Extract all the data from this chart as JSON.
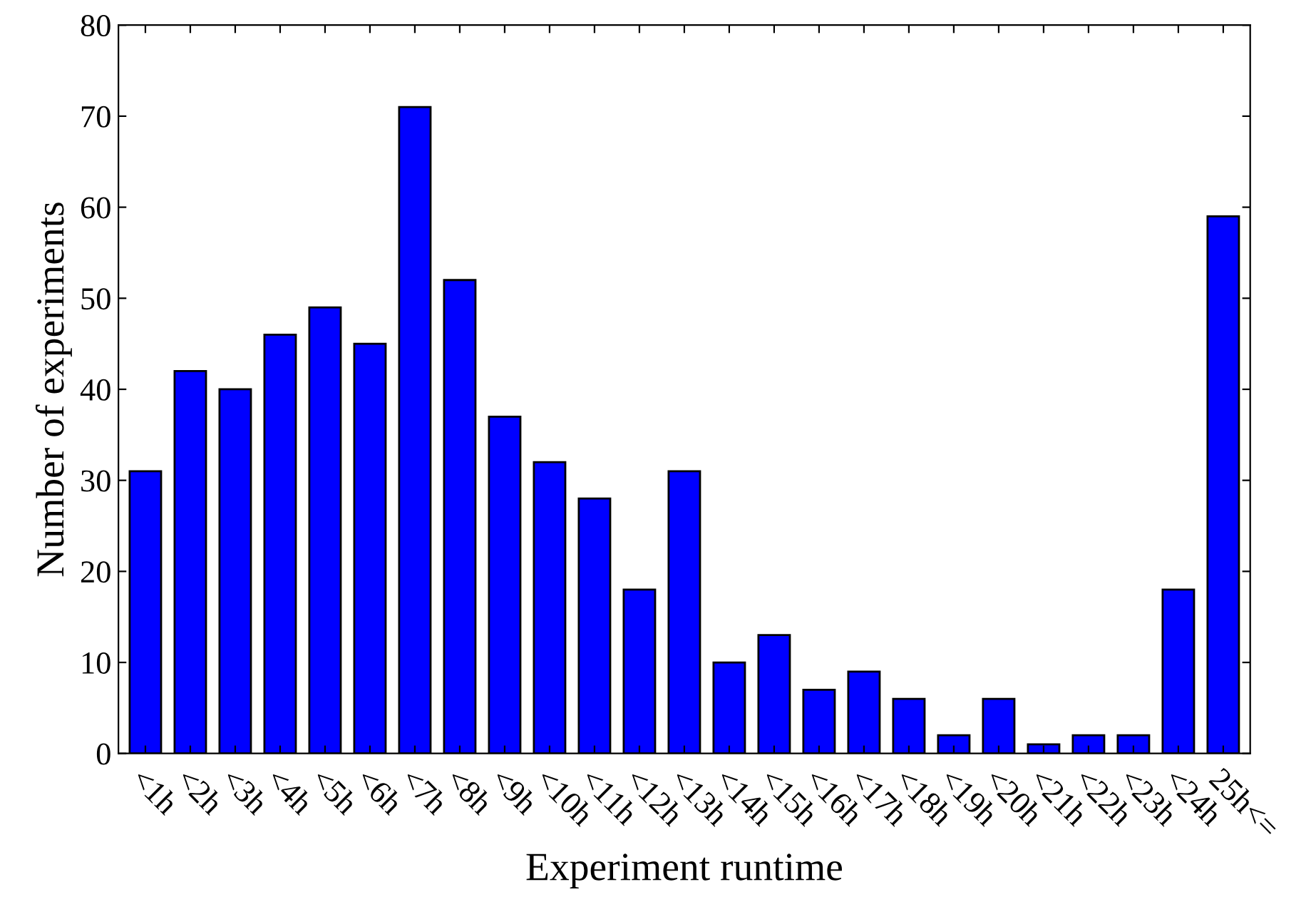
{
  "chart_data": {
    "type": "bar",
    "xlabel": "Experiment runtime",
    "ylabel": "Number of experiments",
    "categories": [
      "<1h",
      "<2h",
      "<3h",
      "<4h",
      "<5h",
      "<6h",
      "<7h",
      "<8h",
      "<9h",
      "<10h",
      "<11h",
      "<12h",
      "<13h",
      "<14h",
      "<15h",
      "<16h",
      "<17h",
      "<18h",
      "<19h",
      "<20h",
      "<21h",
      "<22h",
      "<23h",
      "<24h",
      "25h<="
    ],
    "values": [
      31,
      42,
      40,
      46,
      49,
      45,
      71,
      52,
      37,
      32,
      28,
      18,
      31,
      10,
      13,
      7,
      9,
      6,
      2,
      6,
      1,
      2,
      2,
      18,
      59
    ],
    "color": "#0000ff",
    "ylim": [
      0,
      80
    ],
    "yticks": [
      0,
      10,
      20,
      30,
      40,
      50,
      60,
      70,
      80
    ],
    "grid": false,
    "legend": false
  }
}
